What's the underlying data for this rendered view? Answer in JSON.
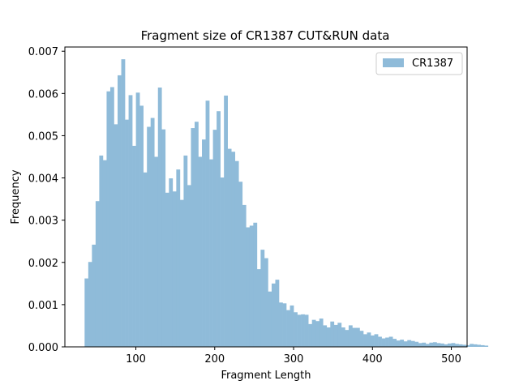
{
  "chart_data": {
    "type": "bar",
    "title": "Fragment size of CR1387 CUT&RUN data",
    "xlabel": "Fragment Length",
    "ylabel": "Frequency",
    "xlim": [
      10,
      520
    ],
    "ylim": [
      0,
      0.0071
    ],
    "xticks": [
      100,
      200,
      300,
      400,
      500
    ],
    "xtick_labels": [
      "100",
      "200",
      "300",
      "400",
      "500"
    ],
    "yticks": [
      0,
      0.001,
      0.002,
      0.003,
      0.004,
      0.005,
      0.006,
      0.007
    ],
    "ytick_labels": [
      "0.000",
      "0.001",
      "0.002",
      "0.003",
      "0.004",
      "0.005",
      "0.006",
      "0.007"
    ],
    "grid": false,
    "legend_position": "top-right",
    "series": [
      {
        "name": "CR1387",
        "color": "#8fbbd9",
        "bin_start": 35,
        "bin_width": 4.65,
        "values": [
          0.00162,
          0.00201,
          0.00242,
          0.00345,
          0.00453,
          0.00442,
          0.00605,
          0.00615,
          0.00527,
          0.00643,
          0.00681,
          0.00538,
          0.00596,
          0.00476,
          0.00602,
          0.00571,
          0.00413,
          0.00521,
          0.00542,
          0.0045,
          0.00614,
          0.00515,
          0.00365,
          0.00399,
          0.00368,
          0.0042,
          0.00348,
          0.00453,
          0.00383,
          0.00518,
          0.00533,
          0.0045,
          0.00491,
          0.00583,
          0.00444,
          0.00514,
          0.00558,
          0.00401,
          0.00595,
          0.00469,
          0.00462,
          0.0044,
          0.00391,
          0.00336,
          0.00283,
          0.00287,
          0.00294,
          0.00184,
          0.0023,
          0.0021,
          0.00131,
          0.0015,
          0.00159,
          0.00105,
          0.00103,
          0.00087,
          0.00098,
          0.00082,
          0.00076,
          0.00077,
          0.00076,
          0.00054,
          0.00064,
          0.00061,
          0.00067,
          0.00051,
          0.00046,
          0.0006,
          0.00052,
          0.00057,
          0.00046,
          0.0004,
          0.00051,
          0.00045,
          0.00045,
          0.00038,
          0.0003,
          0.00034,
          0.00027,
          0.0003,
          0.00024,
          0.0002,
          0.00022,
          0.00024,
          0.00019,
          0.00015,
          0.00017,
          0.00013,
          0.00016,
          0.00014,
          0.00012,
          9e-05,
          0.0001,
          7e-05,
          0.0001,
          0.00011,
          9e-05,
          8e-05,
          6e-05,
          8e-05,
          9e-05,
          7e-05,
          6e-05,
          5e-05,
          4e-05,
          7e-05,
          6e-05,
          5e-05,
          4e-05,
          3e-05
        ]
      }
    ]
  }
}
